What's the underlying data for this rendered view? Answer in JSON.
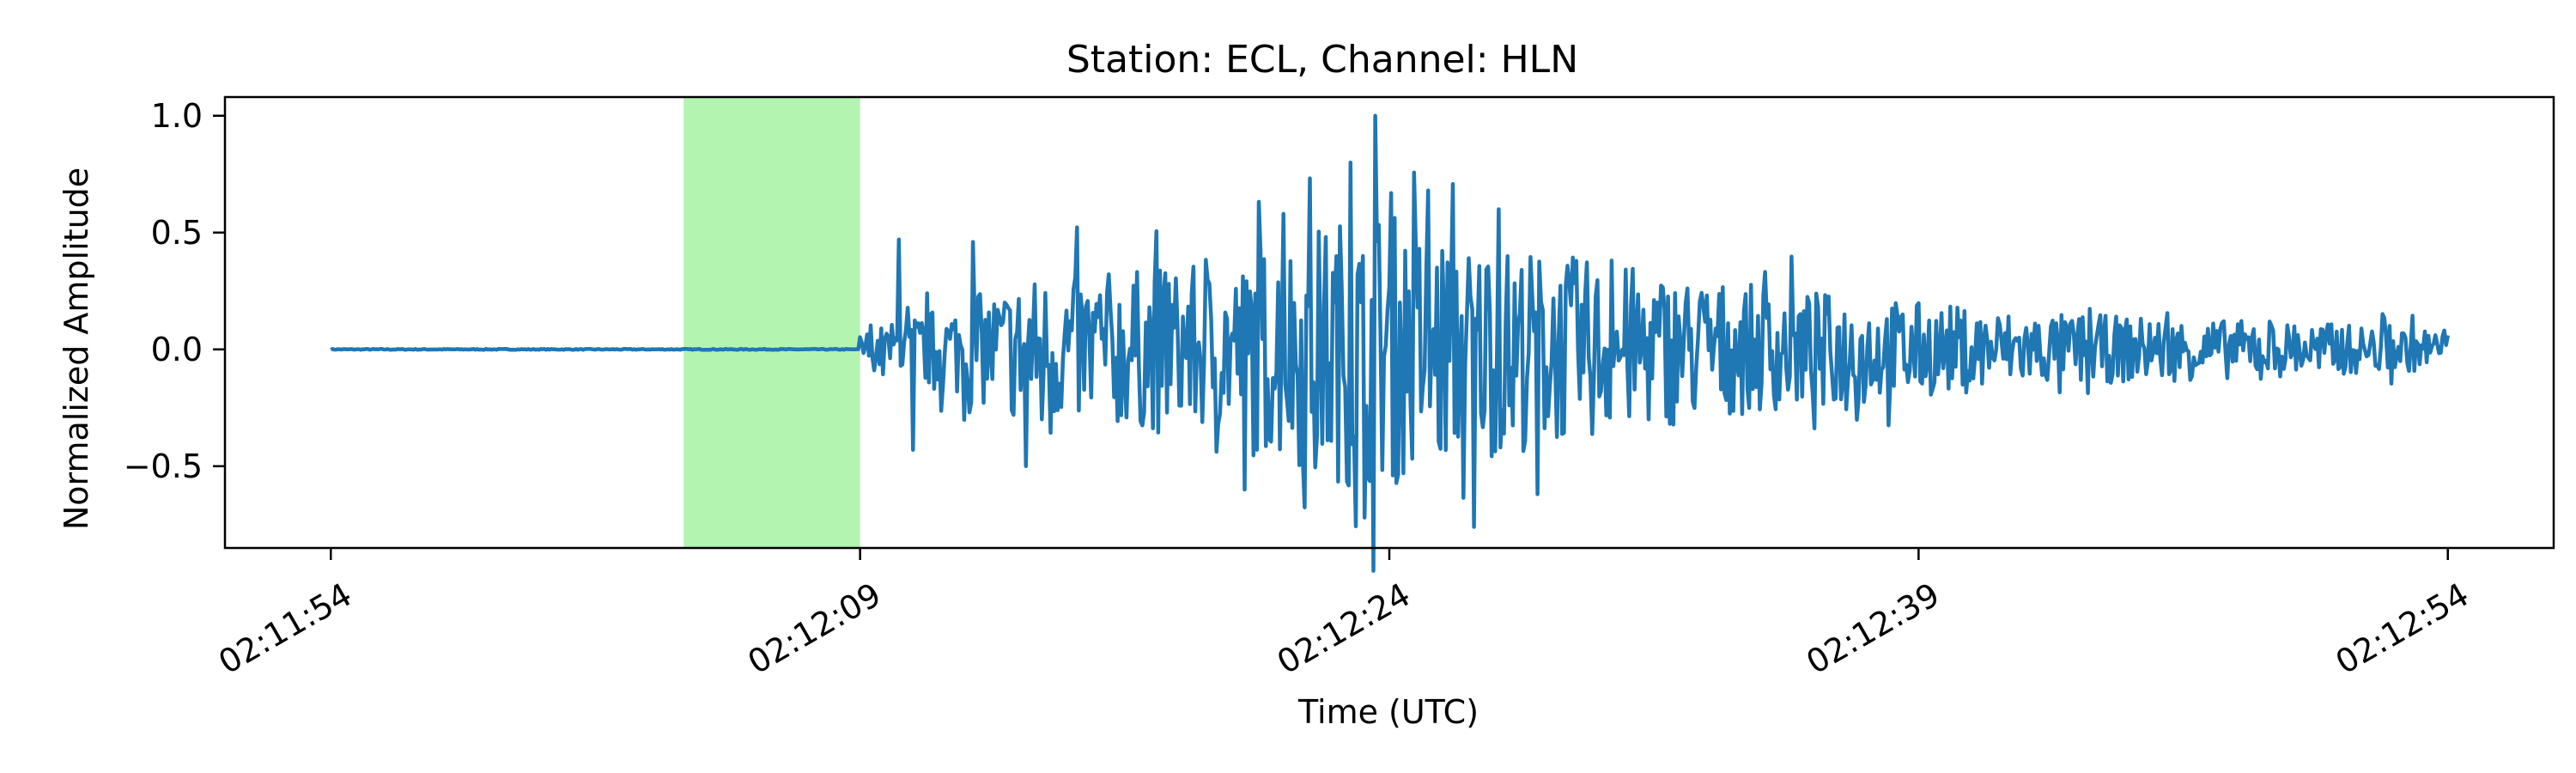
{
  "chart_data": {
    "type": "line",
    "title": "Station: ECL, Channel: HLN",
    "xlabel": "Time (UTC)",
    "ylabel": "Normalized Amplitude",
    "x_unit": "seconds after 02:11:54 UTC",
    "xlim": [
      -3,
      63
    ],
    "ylim": [
      -0.85,
      1.08
    ],
    "x_ticks": [
      0,
      15,
      30,
      45,
      60
    ],
    "x_tick_labels": [
      "02:11:54",
      "02:12:09",
      "02:12:24",
      "02:12:39",
      "02:12:54"
    ],
    "y_ticks": [
      1.0,
      0.5,
      0.0,
      -0.5
    ],
    "y_tick_labels": [
      "1.0",
      "0.5",
      "0.0",
      "−0.5"
    ],
    "grid": false,
    "highlight_window": {
      "x_start": 10,
      "x_end": 15,
      "color": "#b3f4b0"
    },
    "series": [
      {
        "color": "#1f77b4",
        "signal_span": [
          0,
          60
        ],
        "onset": 15,
        "peak_time": 29.6,
        "peak_value": 1.0,
        "min_value": -0.76
      }
    ]
  }
}
